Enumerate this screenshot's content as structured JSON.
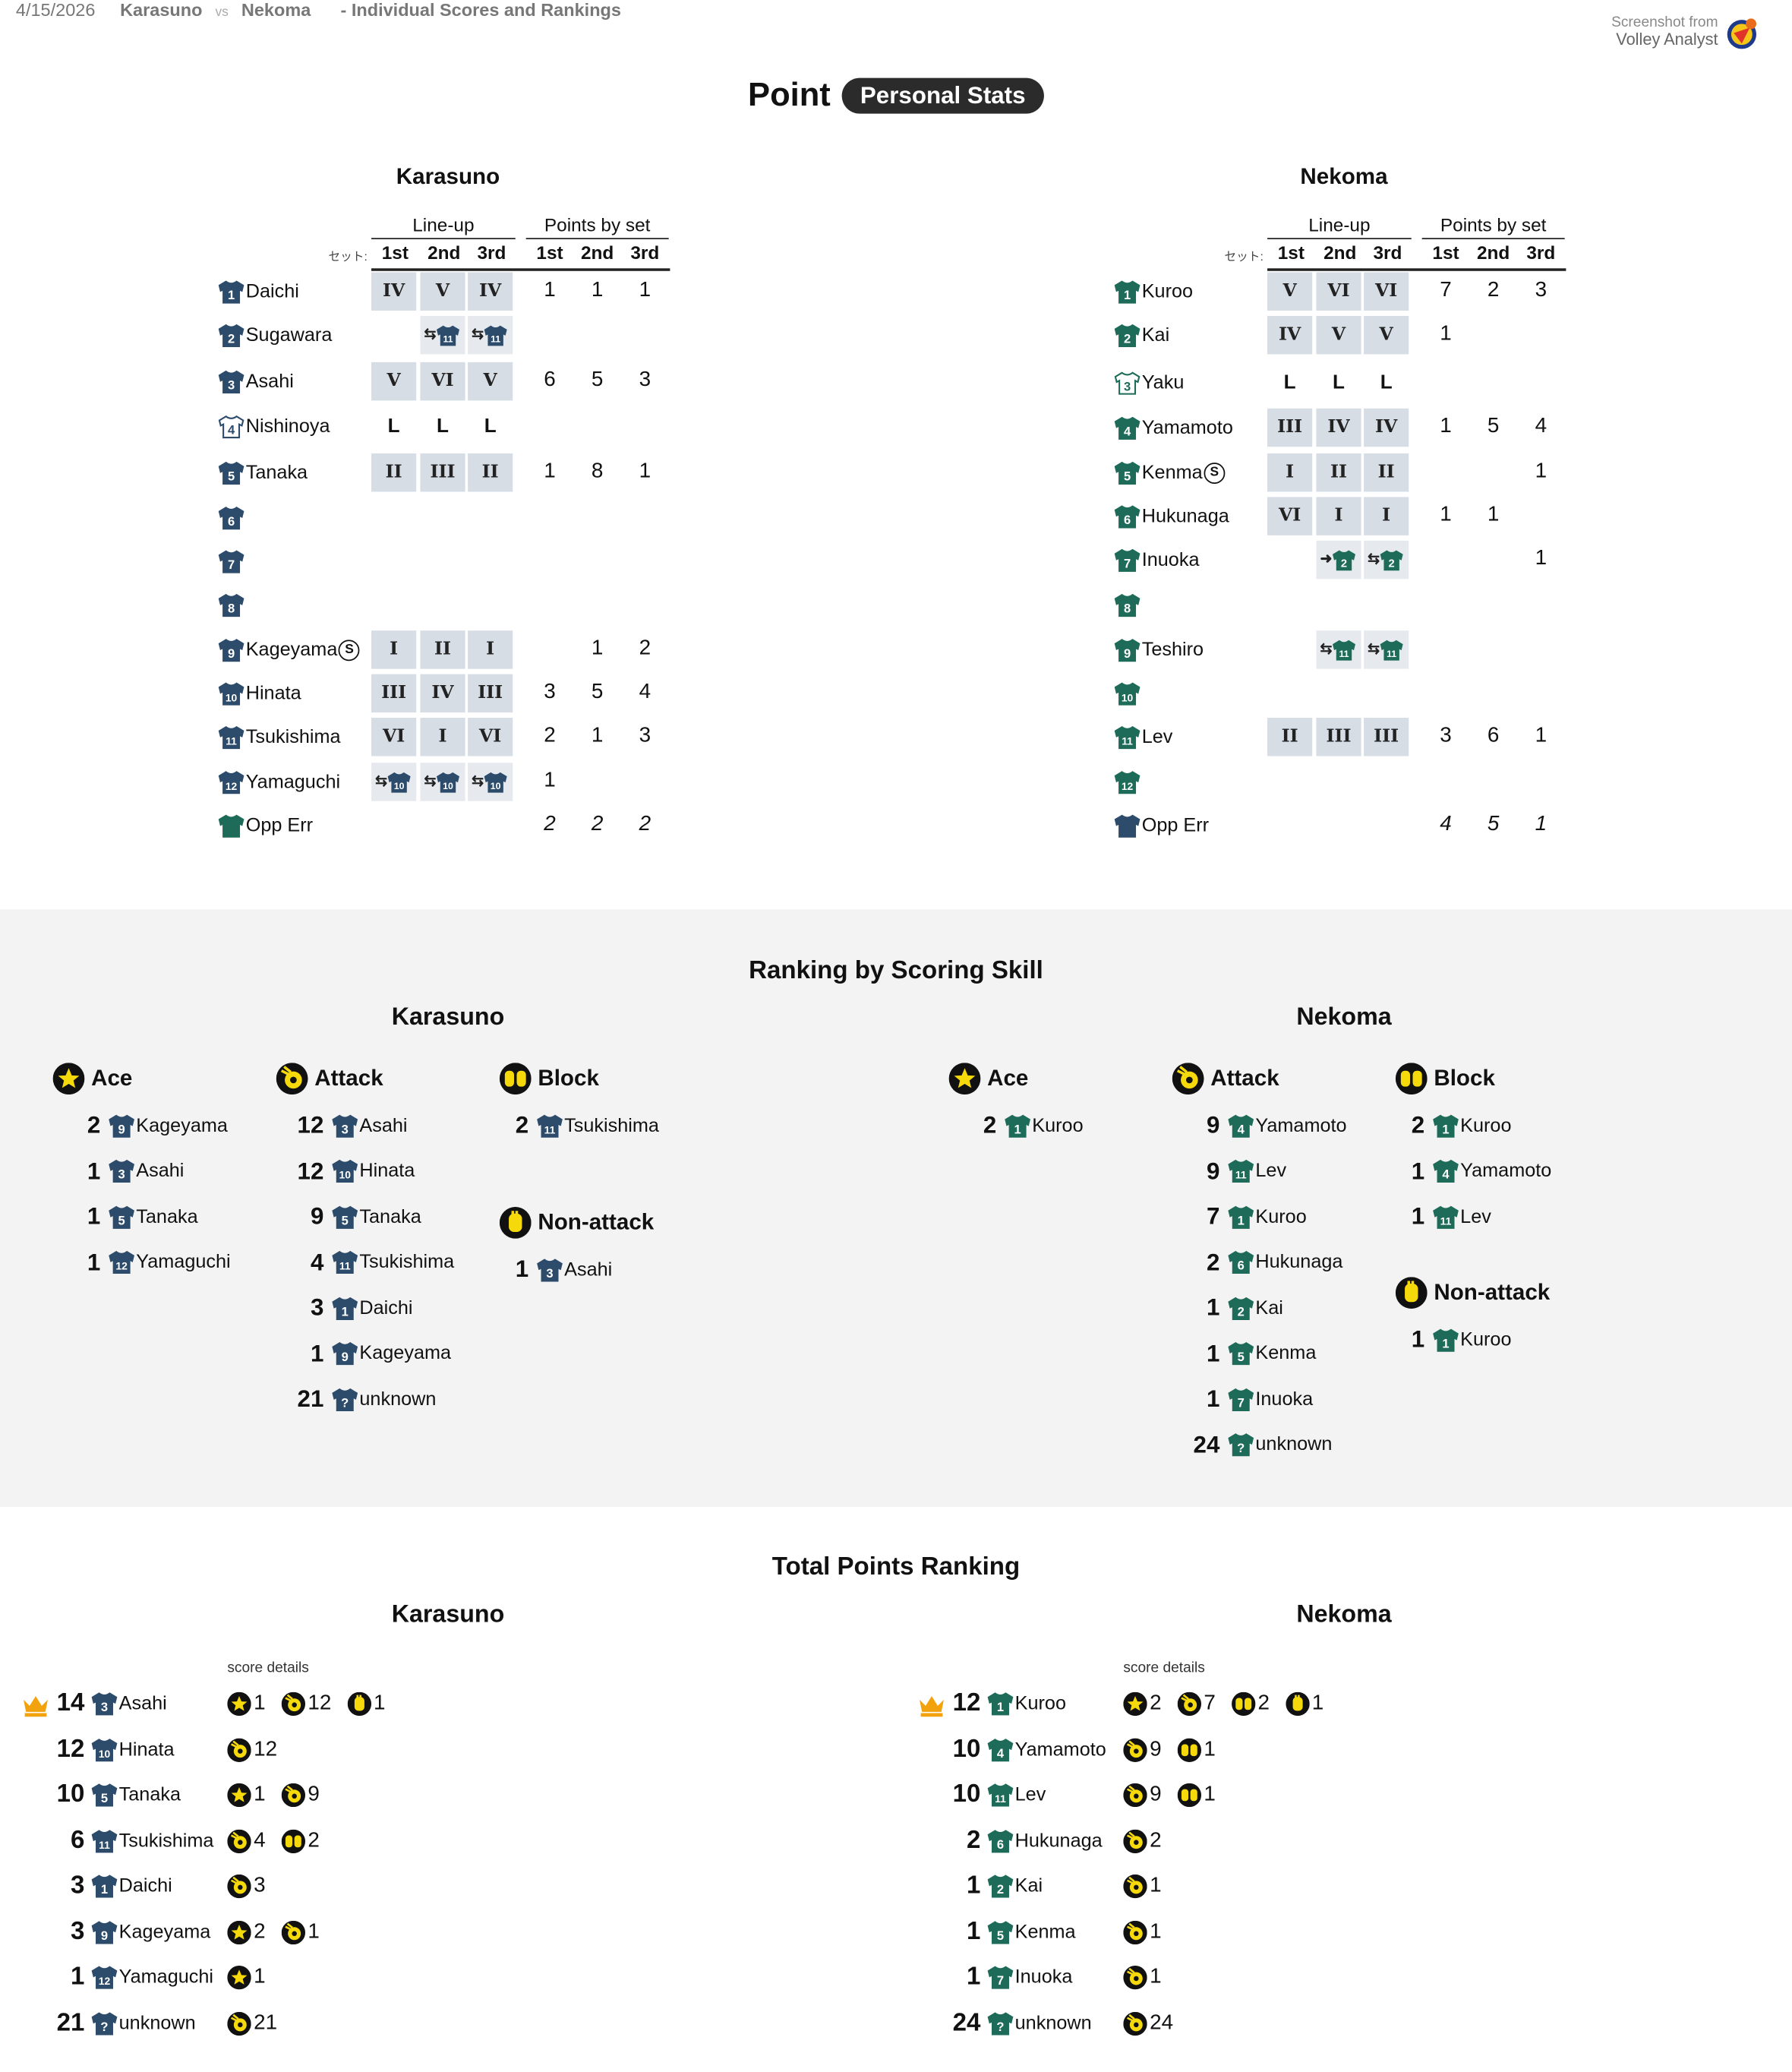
{
  "header": {
    "date": "4/15/2026",
    "home": "Karasuno",
    "vs": "vs",
    "away": "Nekoma",
    "subtitle": "- Individual Scores and Rankings"
  },
  "brand": {
    "line1": "Screenshot from",
    "line2": "Volley Analyst"
  },
  "title": {
    "main": "Point",
    "badge": "Personal Stats"
  },
  "colors": {
    "karasuno": "#2d4b6b",
    "nekoma": "#1d6b58",
    "cell": "#d6dde5",
    "gray": "#f3f3f3",
    "crown": "#f2a20c",
    "icon_yellow": "#f5d90a"
  },
  "lineup_table": {
    "lineup_header": "Line-up",
    "points_header": "Points by set",
    "set_label": "セット:",
    "sets": [
      "1st",
      "2nd",
      "3rd"
    ],
    "teams": [
      {
        "name": "Karasuno",
        "players": [
          {
            "no": "1",
            "name": "Daichi",
            "lineup": [
              "IV",
              "V",
              "IV"
            ],
            "points": [
              "1",
              "1",
              "1"
            ]
          },
          {
            "no": "2",
            "name": "Sugawara",
            "lineup": [
              "",
              "⇆11",
              "⇆11"
            ],
            "points": [
              "",
              "",
              ""
            ]
          },
          {
            "no": "3",
            "name": "Asahi",
            "lineup": [
              "V",
              "VI",
              "V"
            ],
            "points": [
              "6",
              "5",
              "3"
            ]
          },
          {
            "no": "4",
            "name": "Nishinoya",
            "libero": true,
            "lineup": [
              "L",
              "L",
              "L"
            ],
            "points": [
              "",
              "",
              ""
            ]
          },
          {
            "no": "5",
            "name": "Tanaka",
            "lineup": [
              "II",
              "III",
              "II"
            ],
            "points": [
              "1",
              "8",
              "1"
            ]
          },
          {
            "no": "6",
            "name": "",
            "lineup": [
              "",
              "",
              ""
            ],
            "points": [
              "",
              "",
              ""
            ]
          },
          {
            "no": "7",
            "name": "",
            "lineup": [
              "",
              "",
              ""
            ],
            "points": [
              "",
              "",
              ""
            ]
          },
          {
            "no": "8",
            "name": "",
            "lineup": [
              "",
              "",
              ""
            ],
            "points": [
              "",
              "",
              ""
            ]
          },
          {
            "no": "9",
            "name": "Kageyama",
            "setter": "S",
            "lineup": [
              "I",
              "II",
              "I"
            ],
            "points": [
              "",
              "1",
              "2"
            ]
          },
          {
            "no": "10",
            "name": "Hinata",
            "lineup": [
              "III",
              "IV",
              "III"
            ],
            "points": [
              "3",
              "5",
              "4"
            ]
          },
          {
            "no": "11",
            "name": "Tsukishima",
            "lineup": [
              "VI",
              "I",
              "VI"
            ],
            "points": [
              "2",
              "1",
              "3"
            ]
          },
          {
            "no": "12",
            "name": "Yamaguchi",
            "lineup": [
              "⇆10",
              "⇆10",
              "⇆10"
            ],
            "points": [
              "1",
              "",
              ""
            ]
          },
          {
            "no": "",
            "name": "Opp Err",
            "lineup": [
              "",
              "",
              ""
            ],
            "points": [
              "2",
              "2",
              "2"
            ],
            "italic": true
          }
        ]
      },
      {
        "name": "Nekoma",
        "players": [
          {
            "no": "1",
            "name": "Kuroo",
            "lineup": [
              "V",
              "VI",
              "VI"
            ],
            "points": [
              "7",
              "2",
              "3"
            ]
          },
          {
            "no": "2",
            "name": "Kai",
            "lineup": [
              "IV",
              "V",
              "V"
            ],
            "points": [
              "1",
              "",
              ""
            ]
          },
          {
            "no": "3",
            "name": "Yaku",
            "libero": true,
            "lineup": [
              "L",
              "L",
              "L"
            ],
            "points": [
              "",
              "",
              ""
            ]
          },
          {
            "no": "4",
            "name": "Yamamoto",
            "lineup": [
              "III",
              "IV",
              "IV"
            ],
            "points": [
              "1",
              "5",
              "4"
            ]
          },
          {
            "no": "5",
            "name": "Kenma",
            "setter": "S",
            "lineup": [
              "I",
              "II",
              "II"
            ],
            "points": [
              "",
              "",
              "1"
            ]
          },
          {
            "no": "6",
            "name": "Hukunaga",
            "lineup": [
              "VI",
              "I",
              "I"
            ],
            "points": [
              "1",
              "1",
              ""
            ]
          },
          {
            "no": "7",
            "name": "Inuoka",
            "lineup": [
              "",
              "→2",
              "⇆2"
            ],
            "points": [
              "",
              "",
              "1"
            ]
          },
          {
            "no": "8",
            "name": "",
            "lineup": [
              "",
              "",
              ""
            ],
            "points": [
              "",
              "",
              ""
            ]
          },
          {
            "no": "9",
            "name": "Teshiro",
            "lineup": [
              "",
              "⇆11",
              "⇆11"
            ],
            "points": [
              "",
              "",
              ""
            ]
          },
          {
            "no": "10",
            "name": "",
            "lineup": [
              "",
              "",
              ""
            ],
            "points": [
              "",
              "",
              ""
            ]
          },
          {
            "no": "11",
            "name": "Lev",
            "lineup": [
              "II",
              "III",
              "III"
            ],
            "points": [
              "3",
              "6",
              "1"
            ]
          },
          {
            "no": "12",
            "name": "",
            "lineup": [
              "",
              "",
              ""
            ],
            "points": [
              "",
              "",
              ""
            ]
          },
          {
            "no": "",
            "name": "Opp Err",
            "lineup": [
              "",
              "",
              ""
            ],
            "points": [
              "4",
              "5",
              "1"
            ],
            "italic": true
          }
        ]
      }
    ]
  },
  "skill_ranking": {
    "title": "Ranking by Scoring Skill",
    "teams": [
      {
        "name": "Karasuno",
        "groups": [
          {
            "skill": "Ace",
            "icon": "star-icon",
            "entries": [
              {
                "v": "2",
                "no": "9",
                "name": "Kageyama"
              },
              {
                "v": "1",
                "no": "3",
                "name": "Asahi"
              },
              {
                "v": "1",
                "no": "5",
                "name": "Tanaka"
              },
              {
                "v": "1",
                "no": "12",
                "name": "Yamaguchi"
              }
            ]
          },
          {
            "skill": "Attack",
            "icon": "attack-icon",
            "entries": [
              {
                "v": "12",
                "no": "3",
                "name": "Asahi"
              },
              {
                "v": "12",
                "no": "10",
                "name": "Hinata"
              },
              {
                "v": "9",
                "no": "5",
                "name": "Tanaka"
              },
              {
                "v": "4",
                "no": "11",
                "name": "Tsukishima"
              },
              {
                "v": "3",
                "no": "1",
                "name": "Daichi"
              },
              {
                "v": "1",
                "no": "9",
                "name": "Kageyama"
              },
              {
                "v": "21",
                "no": "?",
                "name": "unknown"
              }
            ]
          },
          {
            "skill": "Block",
            "icon": "block-icon",
            "entries": [
              {
                "v": "2",
                "no": "11",
                "name": "Tsukishima"
              }
            ]
          },
          {
            "skill": "Non-attack",
            "icon": "hand-icon",
            "entries": [
              {
                "v": "1",
                "no": "3",
                "name": "Asahi"
              }
            ]
          }
        ]
      },
      {
        "name": "Nekoma",
        "groups": [
          {
            "skill": "Ace",
            "icon": "star-icon",
            "entries": [
              {
                "v": "2",
                "no": "1",
                "name": "Kuroo"
              }
            ]
          },
          {
            "skill": "Attack",
            "icon": "attack-icon",
            "entries": [
              {
                "v": "9",
                "no": "4",
                "name": "Yamamoto"
              },
              {
                "v": "9",
                "no": "11",
                "name": "Lev"
              },
              {
                "v": "7",
                "no": "1",
                "name": "Kuroo"
              },
              {
                "v": "2",
                "no": "6",
                "name": "Hukunaga"
              },
              {
                "v": "1",
                "no": "2",
                "name": "Kai"
              },
              {
                "v": "1",
                "no": "5",
                "name": "Kenma"
              },
              {
                "v": "1",
                "no": "7",
                "name": "Inuoka"
              },
              {
                "v": "24",
                "no": "?",
                "name": "unknown"
              }
            ]
          },
          {
            "skill": "Block",
            "icon": "block-icon",
            "entries": [
              {
                "v": "2",
                "no": "1",
                "name": "Kuroo"
              },
              {
                "v": "1",
                "no": "4",
                "name": "Yamamoto"
              },
              {
                "v": "1",
                "no": "11",
                "name": "Lev"
              }
            ]
          },
          {
            "skill": "Non-attack",
            "icon": "hand-icon",
            "entries": [
              {
                "v": "1",
                "no": "1",
                "name": "Kuroo"
              }
            ]
          }
        ]
      }
    ]
  },
  "total_ranking": {
    "title": "Total Points Ranking",
    "details_label": "score details",
    "teams": [
      {
        "name": "Karasuno",
        "rows": [
          {
            "v": "14",
            "no": "3",
            "name": "Asahi",
            "crown": true,
            "details": [
              {
                "icon": "star-icon",
                "n": "1"
              },
              {
                "icon": "attack-icon",
                "n": "12"
              },
              {
                "icon": "hand-icon",
                "n": "1"
              }
            ]
          },
          {
            "v": "12",
            "no": "10",
            "name": "Hinata",
            "details": [
              {
                "icon": "attack-icon",
                "n": "12"
              }
            ]
          },
          {
            "v": "10",
            "no": "5",
            "name": "Tanaka",
            "details": [
              {
                "icon": "star-icon",
                "n": "1"
              },
              {
                "icon": "attack-icon",
                "n": "9"
              }
            ]
          },
          {
            "v": "6",
            "no": "11",
            "name": "Tsukishima",
            "details": [
              {
                "icon": "attack-icon",
                "n": "4"
              },
              {
                "icon": "block-icon",
                "n": "2"
              }
            ]
          },
          {
            "v": "3",
            "no": "1",
            "name": "Daichi",
            "details": [
              {
                "icon": "attack-icon",
                "n": "3"
              }
            ]
          },
          {
            "v": "3",
            "no": "9",
            "name": "Kageyama",
            "details": [
              {
                "icon": "star-icon",
                "n": "2"
              },
              {
                "icon": "attack-icon",
                "n": "1"
              }
            ]
          },
          {
            "v": "1",
            "no": "12",
            "name": "Yamaguchi",
            "details": [
              {
                "icon": "star-icon",
                "n": "1"
              }
            ]
          },
          {
            "v": "21",
            "no": "?",
            "name": "unknown",
            "details": [
              {
                "icon": "attack-icon",
                "n": "21"
              }
            ]
          }
        ]
      },
      {
        "name": "Nekoma",
        "rows": [
          {
            "v": "12",
            "no": "1",
            "name": "Kuroo",
            "crown": true,
            "details": [
              {
                "icon": "star-icon",
                "n": "2"
              },
              {
                "icon": "attack-icon",
                "n": "7"
              },
              {
                "icon": "block-icon",
                "n": "2"
              },
              {
                "icon": "hand-icon",
                "n": "1"
              }
            ]
          },
          {
            "v": "10",
            "no": "4",
            "name": "Yamamoto",
            "details": [
              {
                "icon": "attack-icon",
                "n": "9"
              },
              {
                "icon": "block-icon",
                "n": "1"
              }
            ]
          },
          {
            "v": "10",
            "no": "11",
            "name": "Lev",
            "details": [
              {
                "icon": "attack-icon",
                "n": "9"
              },
              {
                "icon": "block-icon",
                "n": "1"
              }
            ]
          },
          {
            "v": "2",
            "no": "6",
            "name": "Hukunaga",
            "details": [
              {
                "icon": "attack-icon",
                "n": "2"
              }
            ]
          },
          {
            "v": "1",
            "no": "2",
            "name": "Kai",
            "details": [
              {
                "icon": "attack-icon",
                "n": "1"
              }
            ]
          },
          {
            "v": "1",
            "no": "5",
            "name": "Kenma",
            "details": [
              {
                "icon": "attack-icon",
                "n": "1"
              }
            ]
          },
          {
            "v": "1",
            "no": "7",
            "name": "Inuoka",
            "details": [
              {
                "icon": "attack-icon",
                "n": "1"
              }
            ]
          },
          {
            "v": "24",
            "no": "?",
            "name": "unknown",
            "details": [
              {
                "icon": "attack-icon",
                "n": "24"
              }
            ]
          }
        ]
      }
    ]
  }
}
